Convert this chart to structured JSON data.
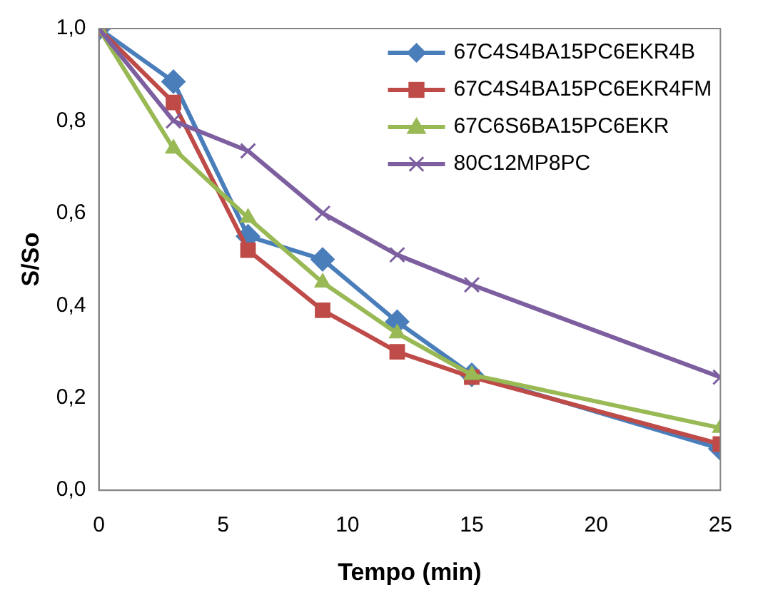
{
  "chart_data": {
    "type": "line",
    "xlabel": "Tempo (min)",
    "ylabel": "S/So",
    "x": [
      0,
      3,
      6,
      9,
      12,
      15,
      25
    ],
    "series": [
      {
        "name": "67C4S4BA15PC6EKR4B",
        "color": "#4a7ebb",
        "marker": "diamond",
        "values": [
          1,
          0.885,
          0.55,
          0.5,
          0.365,
          0.25,
          0.09
        ]
      },
      {
        "name": "67C4S4BA15PC6EKR4FM",
        "color": "#be4b48",
        "marker": "square",
        "values": [
          1,
          0.84,
          0.52,
          0.39,
          0.3,
          0.245,
          0.1
        ]
      },
      {
        "name": "67C6S6BA15PC6EKR",
        "color": "#98b954",
        "marker": "triangle",
        "values": [
          1,
          0.74,
          0.59,
          0.45,
          0.34,
          0.25,
          0.135
        ]
      },
      {
        "name": "80C12MP8PC",
        "color": "#7d5fa0",
        "marker": "cross",
        "values": [
          1,
          0.8,
          0.735,
          0.6,
          0.51,
          0.445,
          0.245
        ]
      }
    ],
    "xlim": [
      0,
      25
    ],
    "xticks": [
      0,
      5,
      10,
      15,
      20,
      25
    ],
    "ylim": [
      0,
      1
    ],
    "yticks": [
      {
        "value": 0,
        "label": "0,0"
      },
      {
        "value": 0.2,
        "label": "0,2"
      },
      {
        "value": 0.4,
        "label": "0,4"
      },
      {
        "value": 0.6,
        "label": "0,6"
      },
      {
        "value": 0.8,
        "label": "0,8"
      },
      {
        "value": 1,
        "label": "1,0"
      }
    ],
    "grid": false,
    "legend": "top right",
    "line_style": "solid"
  }
}
